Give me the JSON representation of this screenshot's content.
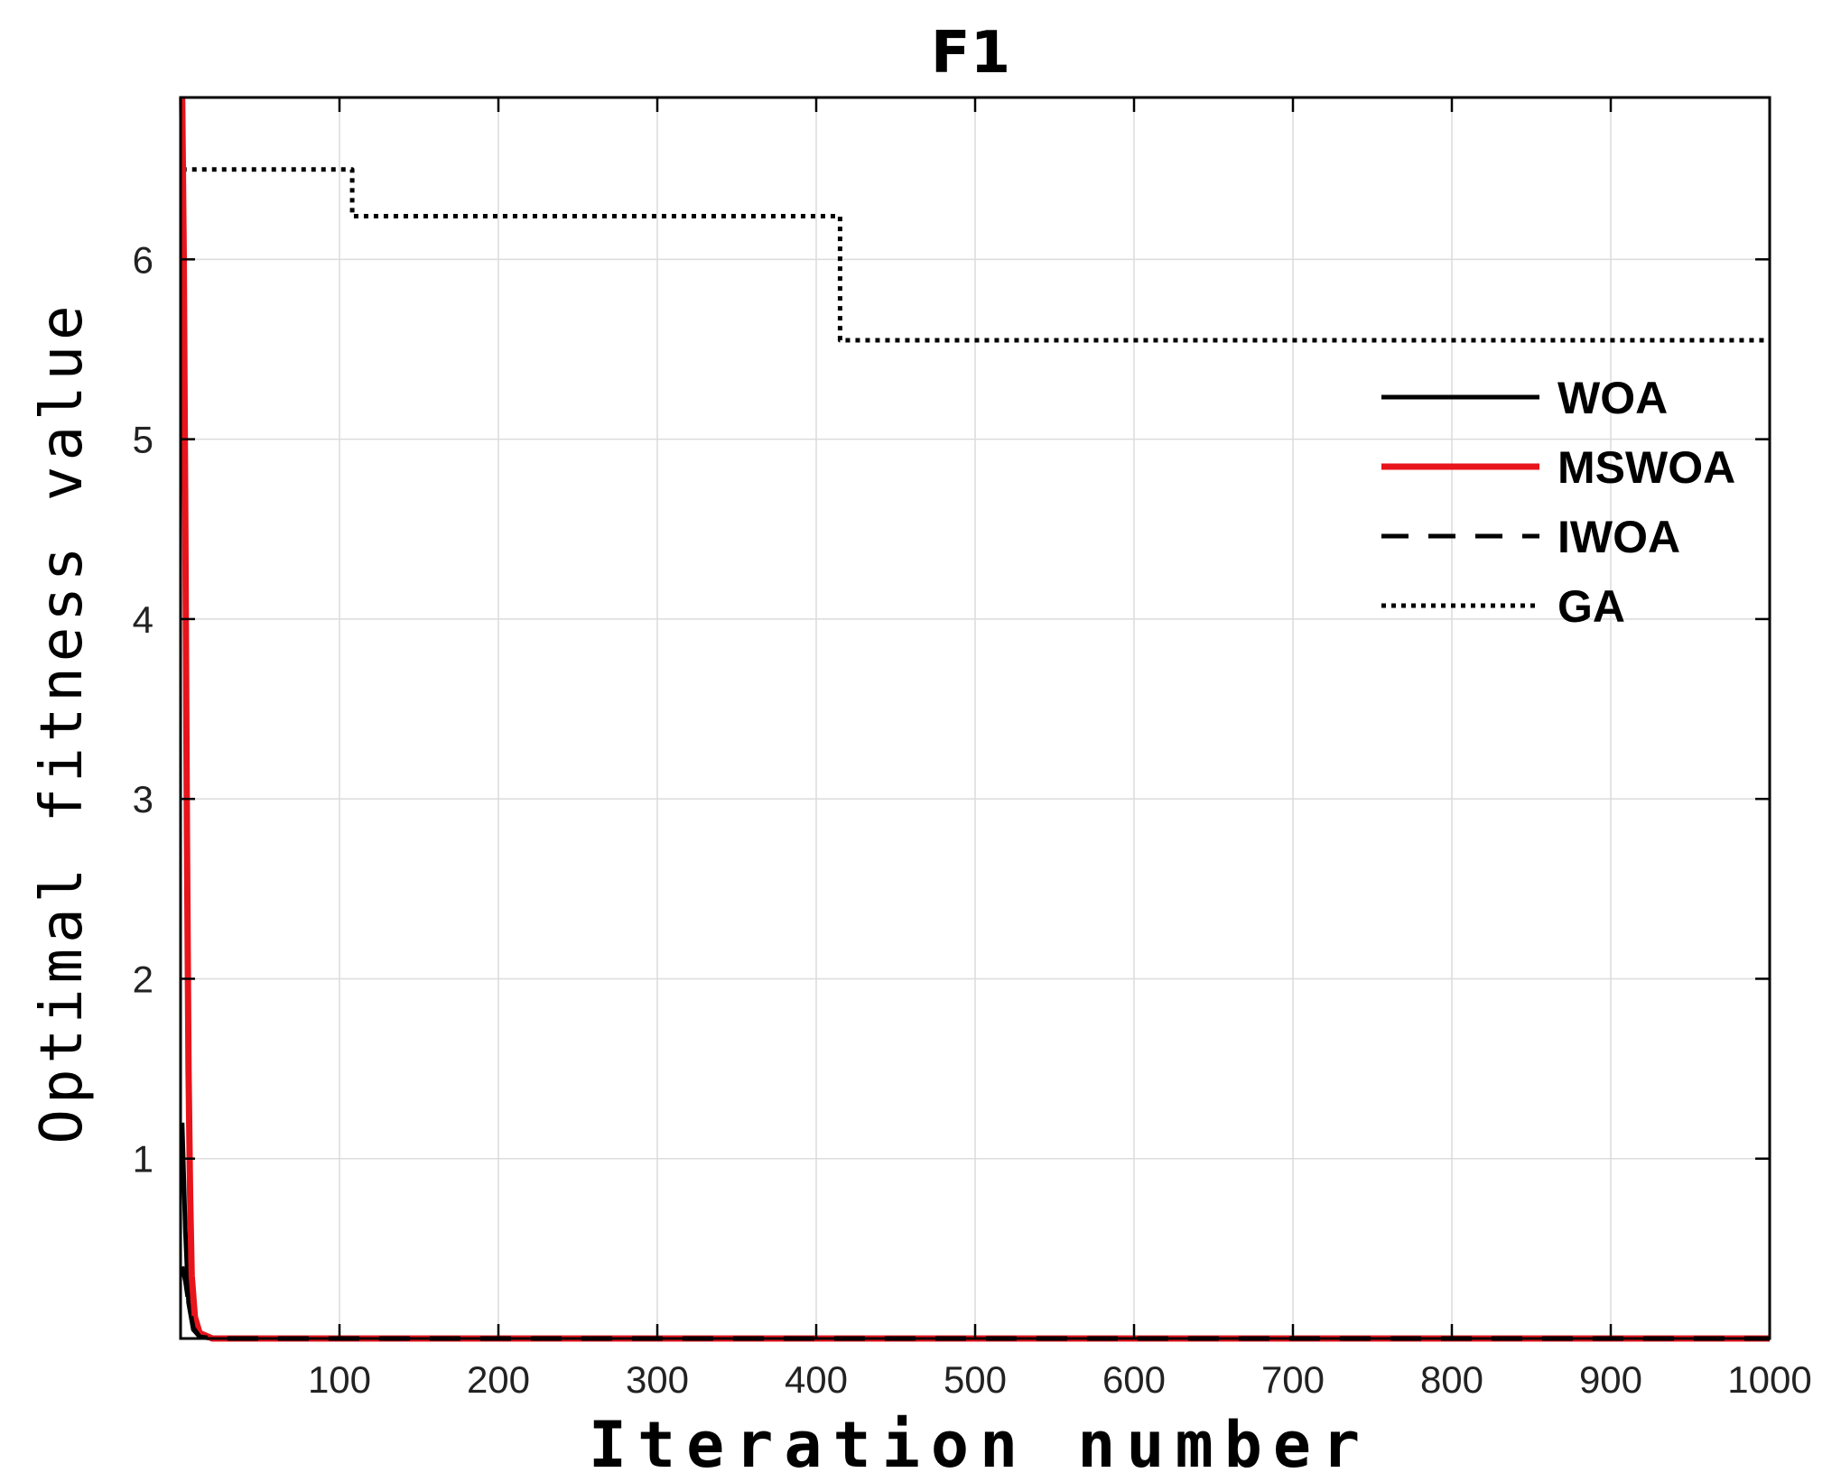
{
  "chart_data": {
    "type": "line",
    "title": "F1",
    "xlabel": "Iteration number",
    "ylabel": "Optimal fitness value",
    "xlim": [
      0,
      1000
    ],
    "ylim": [
      0,
      6.9
    ],
    "xticks": [
      100,
      200,
      300,
      400,
      500,
      600,
      700,
      800,
      900,
      1000
    ],
    "yticks": [
      1,
      2,
      3,
      4,
      5,
      6
    ],
    "grid": true,
    "legend_position": "top-right",
    "series": [
      {
        "name": "WOA",
        "color": "#000000",
        "style": "solid",
        "points": [
          [
            1,
            1.2
          ],
          [
            3,
            0.6
          ],
          [
            5,
            0.2
          ],
          [
            8,
            0.05
          ],
          [
            12,
            0.01
          ],
          [
            20,
            0.0
          ],
          [
            1000,
            0.0
          ]
        ]
      },
      {
        "name": "MSWOA",
        "color": "#e8141c",
        "style": "solid",
        "points": [
          [
            1,
            6.9
          ],
          [
            2,
            6.0
          ],
          [
            3,
            4.5
          ],
          [
            4,
            2.8
          ],
          [
            5,
            1.5
          ],
          [
            6,
            0.8
          ],
          [
            7,
            0.35
          ],
          [
            9,
            0.12
          ],
          [
            12,
            0.03
          ],
          [
            20,
            0.0
          ],
          [
            1000,
            0.0
          ]
        ]
      },
      {
        "name": "IWOA",
        "color": "#000000",
        "style": "dashed",
        "points": [
          [
            1,
            0.4
          ],
          [
            3,
            0.32
          ],
          [
            5,
            0.2
          ],
          [
            8,
            0.06
          ],
          [
            12,
            0.01
          ],
          [
            20,
            0.0
          ],
          [
            1000,
            0.0
          ]
        ]
      },
      {
        "name": "GA",
        "color": "#000000",
        "style": "dotted",
        "points": [
          [
            1,
            6.5
          ],
          [
            108,
            6.5
          ],
          [
            108,
            6.24
          ],
          [
            415,
            6.24
          ],
          [
            415,
            5.55
          ],
          [
            1000,
            5.55
          ]
        ]
      }
    ]
  }
}
